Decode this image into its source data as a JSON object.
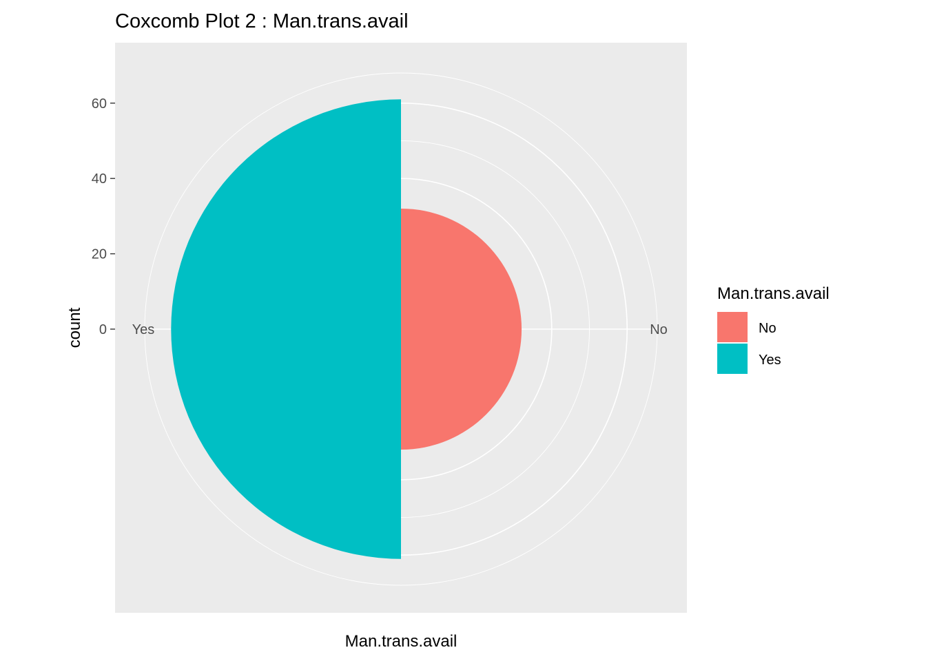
{
  "chart_data": {
    "type": "pie",
    "subtype": "coxcomb",
    "title": "Coxcomb Plot 2 : Man.trans.avail",
    "xlabel": "Man.trans.avail",
    "ylabel": "count",
    "categories": [
      "No",
      "Yes"
    ],
    "values": [
      32,
      61
    ],
    "colors": [
      "#F8766D",
      "#00BFC4"
    ],
    "y_ticks": [
      "0",
      "20",
      "40",
      "60"
    ],
    "y_tick_values": [
      0,
      20,
      40,
      60
    ],
    "ylim": [
      0,
      68
    ],
    "grid": true,
    "legend": {
      "title": "Man.trans.avail",
      "position": "right",
      "items": [
        "No",
        "Yes"
      ]
    }
  }
}
